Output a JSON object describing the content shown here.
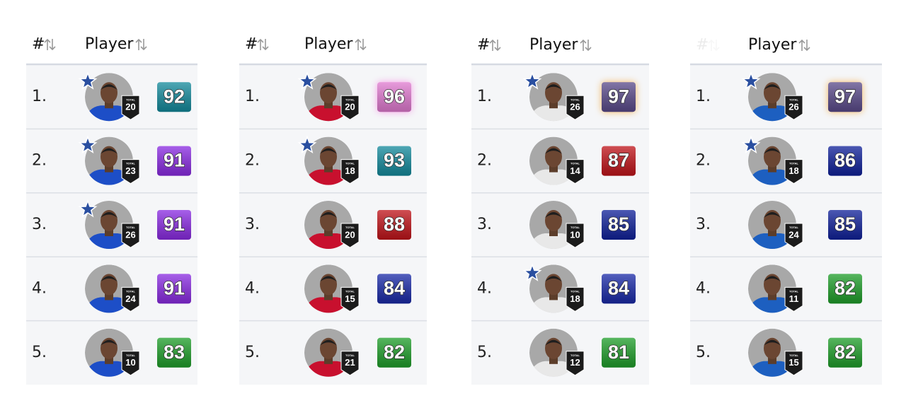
{
  "badge_label": "TOTAL",
  "tables": [
    {
      "headers": [
        "#",
        "Player"
      ],
      "header_faded": false,
      "jersey": "#1d4ec7",
      "rows": [
        {
          "rank": "1.",
          "total": 20,
          "rating": 92,
          "color": "#148a9c",
          "all_star": true
        },
        {
          "rank": "2.",
          "total": 23,
          "rating": 91,
          "color": "#8a2be2",
          "all_star": true
        },
        {
          "rank": "3.",
          "total": 26,
          "rating": 91,
          "color": "#8a2be2",
          "all_star": true
        },
        {
          "rank": "4.",
          "total": 24,
          "rating": 91,
          "color": "#8a2be2",
          "all_star": false
        },
        {
          "rank": "5.",
          "total": 10,
          "rating": 83,
          "color": "#1f9e2a",
          "all_star": false
        }
      ]
    },
    {
      "headers": [
        "#",
        "Player"
      ],
      "header_faded": false,
      "jersey": "#c8102e",
      "rows": [
        {
          "rank": "1.",
          "total": 20,
          "rating": 96,
          "color": "#e07ad0",
          "all_star": true,
          "glow": "#f59ee6"
        },
        {
          "rank": "2.",
          "total": 18,
          "rating": 93,
          "color": "#148a9c",
          "all_star": true
        },
        {
          "rank": "3.",
          "total": 20,
          "rating": 88,
          "color": "#c0141a",
          "all_star": false
        },
        {
          "rank": "4.",
          "total": 15,
          "rating": 84,
          "color": "#1a2aa8",
          "all_star": false
        },
        {
          "rank": "5.",
          "total": 21,
          "rating": 82,
          "color": "#1f9e2a",
          "all_star": false
        }
      ]
    },
    {
      "headers": [
        "#",
        "Player"
      ],
      "header_faded": false,
      "jersey": "#e8e8e8",
      "rows": [
        {
          "rank": "1.",
          "total": 26,
          "rating": 97,
          "color": "#5a4a8a",
          "all_star": true,
          "glow": "#f5b860"
        },
        {
          "rank": "2.",
          "total": 14,
          "rating": 87,
          "color": "#c0141a",
          "all_star": false
        },
        {
          "rank": "3.",
          "total": 10,
          "rating": 85,
          "color": "#10219a",
          "all_star": false
        },
        {
          "rank": "4.",
          "total": 18,
          "rating": 84,
          "color": "#1a2aa8",
          "all_star": true
        },
        {
          "rank": "5.",
          "total": 12,
          "rating": 81,
          "color": "#1f9e2a",
          "all_star": false
        }
      ]
    },
    {
      "headers": [
        "#",
        "Player"
      ],
      "header_faded": true,
      "jersey": "#1d5fc0",
      "rows": [
        {
          "rank": "1.",
          "total": 26,
          "rating": 97,
          "color": "#5a4a8a",
          "all_star": true,
          "glow": "#f5b860"
        },
        {
          "rank": "2.",
          "total": 18,
          "rating": 86,
          "color": "#10219a",
          "all_star": true
        },
        {
          "rank": "3.",
          "total": 24,
          "rating": 85,
          "color": "#10219a",
          "all_star": false
        },
        {
          "rank": "4.",
          "total": 11,
          "rating": 82,
          "color": "#1f9e2a",
          "all_star": false
        },
        {
          "rank": "5.",
          "total": 15,
          "rating": 82,
          "color": "#1f9e2a",
          "all_star": false
        }
      ]
    }
  ]
}
